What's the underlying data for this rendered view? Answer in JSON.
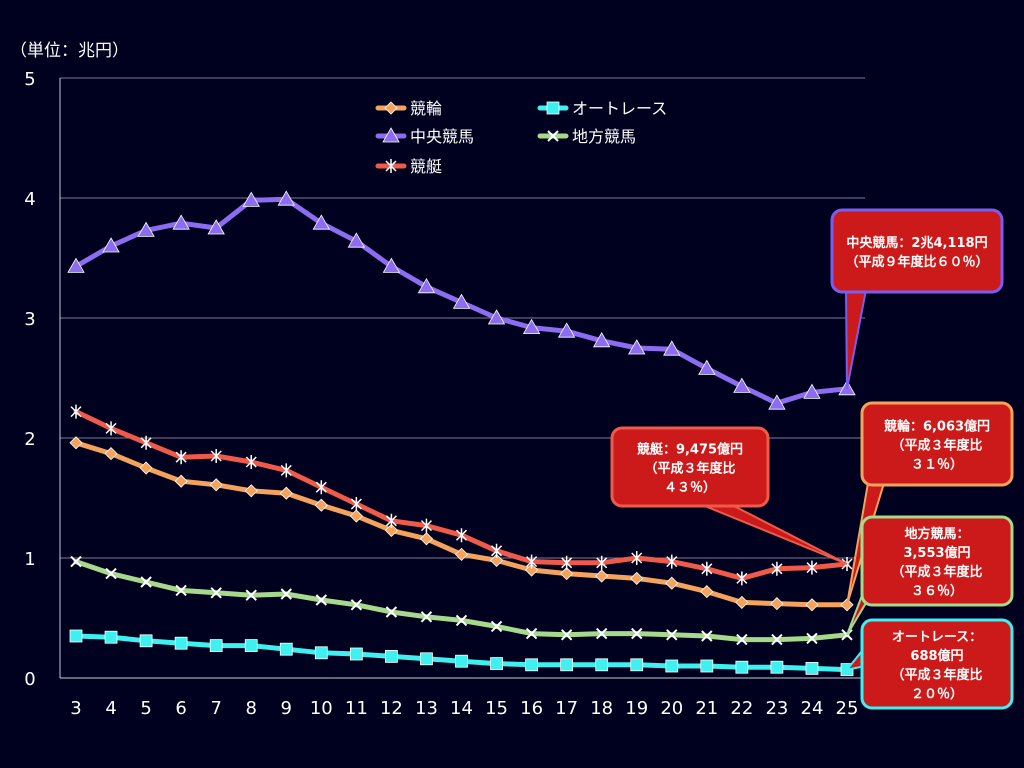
{
  "unit_label": "（単位：兆円）",
  "colors": {
    "background": "#00001f",
    "keirin": "#f5a35c",
    "auto_race": "#3ff0f0",
    "chuo_keiba": "#8c6cf0",
    "chiho_keiba": "#a6d98c",
    "kyotei": "#f05a4a",
    "callout_fill": "#cc1a1a",
    "grid": "#b0b0c8"
  },
  "chart_data": {
    "type": "line",
    "categories": [
      "3",
      "4",
      "5",
      "6",
      "7",
      "8",
      "9",
      "10",
      "11",
      "12",
      "13",
      "14",
      "15",
      "16",
      "17",
      "18",
      "19",
      "20",
      "21",
      "22",
      "23",
      "24",
      "25"
    ],
    "ylim": [
      0,
      5
    ],
    "yticks": [
      "0",
      "1",
      "2",
      "3",
      "4",
      "5"
    ],
    "grid": true,
    "legend_position": "top-center",
    "series": [
      {
        "name": "競輪",
        "key": "keirin",
        "marker": "diamond",
        "values": [
          1.96,
          1.87,
          1.75,
          1.64,
          1.61,
          1.56,
          1.54,
          1.44,
          1.35,
          1.23,
          1.16,
          1.03,
          0.98,
          0.9,
          0.87,
          0.85,
          0.83,
          0.79,
          0.72,
          0.63,
          0.62,
          0.61,
          0.61
        ]
      },
      {
        "name": "オートレース",
        "key": "auto_race",
        "marker": "square",
        "values": [
          0.35,
          0.34,
          0.31,
          0.29,
          0.27,
          0.27,
          0.24,
          0.21,
          0.2,
          0.18,
          0.16,
          0.14,
          0.12,
          0.11,
          0.11,
          0.11,
          0.11,
          0.1,
          0.1,
          0.09,
          0.09,
          0.08,
          0.07
        ]
      },
      {
        "name": "中央競馬",
        "key": "chuo_keiba",
        "marker": "triangle",
        "values": [
          3.43,
          3.6,
          3.73,
          3.79,
          3.75,
          3.98,
          3.99,
          3.79,
          3.64,
          3.43,
          3.26,
          3.13,
          3.0,
          2.92,
          2.89,
          2.81,
          2.75,
          2.74,
          2.58,
          2.43,
          2.29,
          2.38,
          2.41
        ]
      },
      {
        "name": "地方競馬",
        "key": "chiho_keiba",
        "marker": "x",
        "values": [
          0.97,
          0.87,
          0.8,
          0.73,
          0.71,
          0.69,
          0.7,
          0.65,
          0.61,
          0.55,
          0.51,
          0.48,
          0.43,
          0.37,
          0.36,
          0.37,
          0.37,
          0.36,
          0.35,
          0.32,
          0.32,
          0.33,
          0.36
        ]
      },
      {
        "name": "競艇",
        "key": "kyotei",
        "marker": "star",
        "values": [
          2.22,
          2.08,
          1.96,
          1.84,
          1.85,
          1.8,
          1.73,
          1.59,
          1.45,
          1.31,
          1.27,
          1.19,
          1.06,
          0.97,
          0.96,
          0.96,
          1.0,
          0.97,
          0.91,
          0.83,
          0.91,
          0.92,
          0.95
        ]
      }
    ],
    "annotations": [
      {
        "key": "chuo_keiba",
        "text": "中央競馬：2兆4,118円\n（平成９年度比６０％）"
      },
      {
        "key": "keirin",
        "text": "競輪：6,063億円\n（平成３年度比\n３１％）"
      },
      {
        "key": "kyotei",
        "text": "競艇：9,475億円\n（平成３年度比\n４３％）"
      },
      {
        "key": "chiho_keiba",
        "text": "地方競馬：\n3,553億円\n（平成３年度比\n３６％）"
      },
      {
        "key": "auto_race",
        "text": "オートレース：\n688億円\n（平成３年度比\n２０％）"
      }
    ]
  }
}
